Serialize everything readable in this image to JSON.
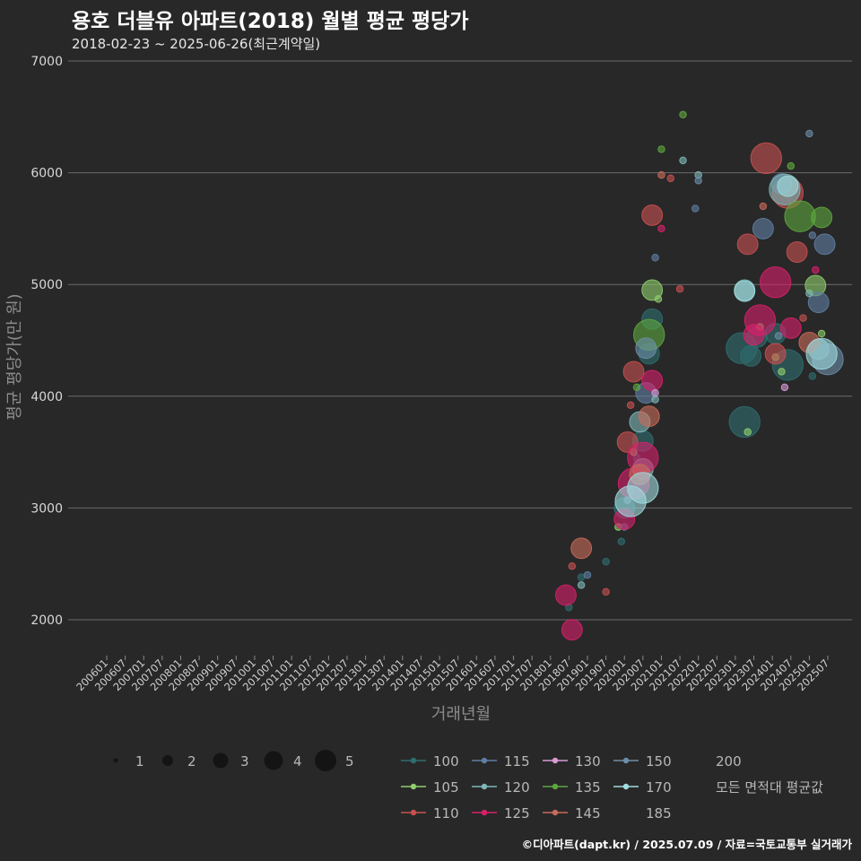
{
  "chart_data": {
    "type": "scatter",
    "title": "용호 더블유 아파트(2018) 월별 평균 평당가",
    "subtitle": "2018-02-23 ~ 2025-06-26(최근계약일)",
    "xlabel": "거래년월",
    "ylabel": "평균 평당가(만 원)",
    "ylim": [
      1700,
      7000
    ],
    "y_ticks": [
      2000,
      3000,
      4000,
      5000,
      6000,
      7000
    ],
    "x_range": [
      "200601",
      "202507"
    ],
    "x_ticks": [
      "200601",
      "200607",
      "200701",
      "200707",
      "200801",
      "200807",
      "200901",
      "200907",
      "201001",
      "201007",
      "201101",
      "201107",
      "201201",
      "201207",
      "201301",
      "201307",
      "201401",
      "201407",
      "201501",
      "201507",
      "201601",
      "201607",
      "201701",
      "201707",
      "201801",
      "201807",
      "201901",
      "201907",
      "202001",
      "202007",
      "202101",
      "202107",
      "202201",
      "202207",
      "202301",
      "202307",
      "202401",
      "202407",
      "202501",
      "202507"
    ],
    "grid": true,
    "size_legend": {
      "title": "",
      "values": [
        "1",
        "2",
        "3",
        "4",
        "5"
      ]
    },
    "color_legend": {
      "title": "",
      "entries": [
        {
          "label": "100",
          "color": "#2e6e70"
        },
        {
          "label": "105",
          "color": "#8fce6c"
        },
        {
          "label": "110",
          "color": "#c95050"
        },
        {
          "label": "115",
          "color": "#5f7fa3"
        },
        {
          "label": "120",
          "color": "#7fb7b8"
        },
        {
          "label": "125",
          "color": "#d8206a"
        },
        {
          "label": "130",
          "color": "#d89ad8"
        },
        {
          "label": "135",
          "color": "#5da83e"
        },
        {
          "label": "145",
          "color": "#c96a5a"
        },
        {
          "label": "150",
          "color": "#6d8ea8"
        },
        {
          "label": "170",
          "color": "#a0dce0"
        },
        {
          "label": "185",
          "color": ""
        },
        {
          "label": "200",
          "color": ""
        },
        {
          "label": "모든 면적대 평균값",
          "color": ""
        }
      ]
    },
    "series": [
      {
        "name": "100",
        "points": [
          [
            "201807",
            2110,
            1
          ],
          [
            "201811",
            2380,
            1
          ],
          [
            "201907",
            2520,
            1
          ],
          [
            "201912",
            2700,
            1
          ],
          [
            "202001",
            3000,
            2
          ],
          [
            "202003",
            3150,
            1
          ],
          [
            "202005",
            3450,
            1
          ],
          [
            "202007",
            3600,
            2
          ],
          [
            "202009",
            4380,
            2
          ],
          [
            "202010",
            4690,
            2
          ],
          [
            "202303",
            4430,
            3
          ],
          [
            "202304",
            3770,
            3
          ],
          [
            "202306",
            4360,
            2
          ],
          [
            "202308",
            4530,
            2
          ],
          [
            "202402",
            4560,
            2
          ],
          [
            "202406",
            4280,
            3
          ],
          [
            "202502",
            4180,
            1
          ]
        ]
      },
      {
        "name": "105",
        "points": [
          [
            "201911",
            2830,
            1
          ],
          [
            "202004",
            3500,
            1
          ],
          [
            "202010",
            4950,
            2
          ],
          [
            "202012",
            4870,
            1
          ],
          [
            "202305",
            3680,
            1
          ],
          [
            "202309",
            4620,
            1
          ],
          [
            "202402",
            4350,
            1
          ],
          [
            "202404",
            4220,
            1
          ],
          [
            "202503",
            4990,
            2
          ],
          [
            "202505",
            4560,
            1
          ]
        ]
      },
      {
        "name": "110",
        "points": [
          [
            "201808",
            2480,
            1
          ],
          [
            "201907",
            2250,
            1
          ],
          [
            "202002",
            3590,
            2
          ],
          [
            "202003",
            3920,
            1
          ],
          [
            "202004",
            4220,
            2
          ],
          [
            "202010",
            5620,
            2
          ],
          [
            "202104",
            5950,
            1
          ],
          [
            "202107",
            4960,
            1
          ],
          [
            "202305",
            5360,
            2
          ],
          [
            "202311",
            6130,
            3
          ],
          [
            "202402",
            4380,
            2
          ],
          [
            "202406",
            5820,
            3
          ],
          [
            "202409",
            5290,
            2
          ],
          [
            "202411",
            4700,
            1
          ]
        ]
      },
      {
        "name": "115",
        "points": [
          [
            "201901",
            2400,
            1
          ],
          [
            "202001",
            2830,
            1
          ],
          [
            "202008",
            4030,
            2
          ],
          [
            "202011",
            5240,
            1
          ],
          [
            "202112",
            5680,
            1
          ],
          [
            "202310",
            5500,
            2
          ],
          [
            "202404",
            5900,
            2
          ],
          [
            "202502",
            5440,
            1
          ],
          [
            "202504",
            4840,
            2
          ],
          [
            "202506",
            5360,
            2
          ]
        ]
      },
      {
        "name": "120",
        "points": [
          [
            "201811",
            2310,
            1
          ],
          [
            "202006",
            3770,
            2
          ],
          [
            "202007",
            3350,
            2
          ],
          [
            "202011",
            3970,
            1
          ],
          [
            "202108",
            6110,
            1
          ],
          [
            "202201",
            5980,
            1
          ],
          [
            "202304",
            4950,
            2
          ],
          [
            "202405",
            5850,
            3
          ],
          [
            "202501",
            4920,
            1
          ],
          [
            "202504",
            4420,
            2
          ]
        ]
      },
      {
        "name": "125",
        "points": [
          [
            "201806",
            2220,
            2
          ],
          [
            "201808",
            1910,
            2
          ],
          [
            "202001",
            2900,
            2
          ],
          [
            "202004",
            3220,
            3
          ],
          [
            "202007",
            3450,
            3
          ],
          [
            "202010",
            4140,
            2
          ],
          [
            "202101",
            5500,
            1
          ],
          [
            "202307",
            4550,
            2
          ],
          [
            "202309",
            4680,
            3
          ],
          [
            "202402",
            5020,
            3
          ],
          [
            "202407",
            4610,
            2
          ],
          [
            "202503",
            5130,
            1
          ]
        ]
      },
      {
        "name": "130",
        "points": [
          [
            "202011",
            4030,
            1
          ],
          [
            "202405",
            4080,
            1
          ]
        ]
      },
      {
        "name": "135",
        "points": [
          [
            "202005",
            4080,
            1
          ],
          [
            "202009",
            4550,
            3
          ],
          [
            "202101",
            6210,
            1
          ],
          [
            "202108",
            6520,
            1
          ],
          [
            "202407",
            6060,
            1
          ],
          [
            "202410",
            5610,
            3
          ],
          [
            "202505",
            5600,
            2
          ]
        ]
      },
      {
        "name": "145",
        "points": [
          [
            "201811",
            2640,
            2
          ],
          [
            "202006",
            3300,
            2
          ],
          [
            "202009",
            3820,
            2
          ],
          [
            "202101",
            5980,
            1
          ],
          [
            "202310",
            5700,
            1
          ],
          [
            "202501",
            4480,
            2
          ]
        ]
      },
      {
        "name": "150",
        "points": [
          [
            "202002",
            3070,
            1
          ],
          [
            "202008",
            4430,
            2
          ],
          [
            "202201",
            5930,
            1
          ],
          [
            "202403",
            4540,
            1
          ],
          [
            "202501",
            6350,
            1
          ],
          [
            "202507",
            4330,
            3
          ]
        ]
      },
      {
        "name": "170",
        "points": [
          [
            "202003",
            3060,
            3
          ],
          [
            "202007",
            3180,
            3
          ],
          [
            "202304",
            4940,
            2
          ],
          [
            "202406",
            5880,
            2
          ],
          [
            "202505",
            4380,
            3
          ]
        ]
      }
    ]
  },
  "caption": "©디아파트(dapt.kr) / 2025.07.09 / 자료=국토교통부 실거래가"
}
